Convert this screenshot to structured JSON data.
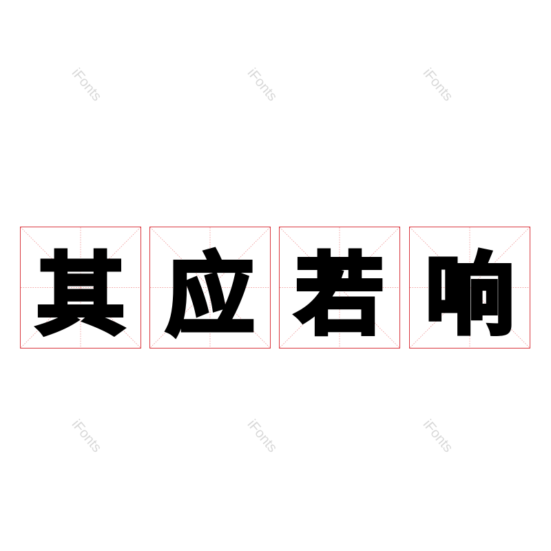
{
  "characters": [
    "其",
    "应",
    "若",
    "响"
  ],
  "watermark": "iFonts",
  "colors": {
    "grid": "#d9363e",
    "text": "#000000",
    "watermark": "#d8d8d8"
  }
}
